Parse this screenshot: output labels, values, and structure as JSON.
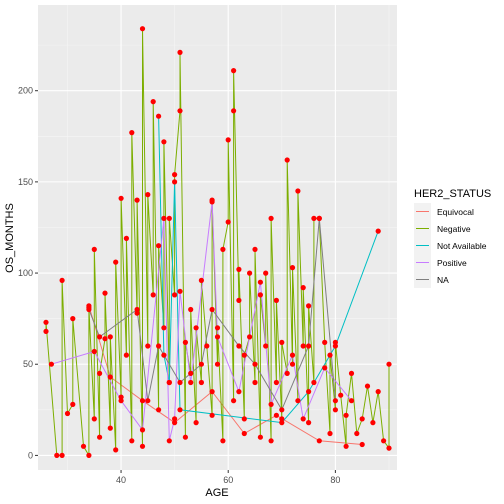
{
  "chart_data": {
    "type": "line",
    "title": "",
    "xlabel": "AGE",
    "ylabel": "OS_MONTHS",
    "xlim": [
      24.5,
      91.5
    ],
    "ylim": [
      -8,
      247
    ],
    "x_ticks": [
      40,
      60,
      80
    ],
    "y_ticks": [
      0,
      50,
      100,
      150,
      200
    ],
    "grid": true,
    "point_color": "#ff0000",
    "legend": {
      "title": "HER2_STATUS",
      "position": "right",
      "entries": [
        {
          "name": "Equivocal",
          "color": "#f8766d"
        },
        {
          "name": "Negative",
          "color": "#7cae00"
        },
        {
          "name": "Not Available",
          "color": "#00bfc4"
        },
        {
          "name": "Positive",
          "color": "#c77cff"
        },
        {
          "name": "NA",
          "color": "#7f7f7f"
        }
      ]
    },
    "series": [
      {
        "name": "Equivocal",
        "color": "#f8766d",
        "points": [
          [
            34,
            82
          ],
          [
            38,
            43
          ],
          [
            44,
            30
          ],
          [
            50,
            18
          ],
          [
            57,
            35
          ],
          [
            63,
            12
          ],
          [
            69,
            22
          ],
          [
            77,
            8
          ],
          [
            85,
            6
          ]
        ]
      },
      {
        "name": "Negative",
        "color": "#7cae00",
        "points": [
          [
            26,
            73
          ],
          [
            26,
            68
          ],
          [
            28,
            0
          ],
          [
            29,
            0
          ],
          [
            29,
            96
          ],
          [
            30,
            23
          ],
          [
            31,
            75
          ],
          [
            31,
            28
          ],
          [
            33,
            5
          ],
          [
            34,
            81
          ],
          [
            34,
            0
          ],
          [
            35,
            113
          ],
          [
            35,
            20
          ],
          [
            36,
            10
          ],
          [
            36,
            45
          ],
          [
            37,
            64
          ],
          [
            37,
            89
          ],
          [
            38,
            15
          ],
          [
            38,
            65
          ],
          [
            39,
            106
          ],
          [
            39,
            3
          ],
          [
            40,
            141
          ],
          [
            40,
            32
          ],
          [
            41,
            119
          ],
          [
            41,
            55
          ],
          [
            42,
            177
          ],
          [
            42,
            8
          ],
          [
            43,
            78
          ],
          [
            43,
            140
          ],
          [
            44,
            234
          ],
          [
            44,
            5
          ],
          [
            45,
            143
          ],
          [
            45,
            60
          ],
          [
            46,
            194
          ],
          [
            46,
            88
          ],
          [
            47,
            115
          ],
          [
            47,
            25
          ],
          [
            48,
            70
          ],
          [
            48,
            172
          ],
          [
            49,
            130
          ],
          [
            49,
            40
          ],
          [
            50,
            154
          ],
          [
            50,
            88
          ],
          [
            51,
            221
          ],
          [
            51,
            189
          ],
          [
            52,
            62
          ],
          [
            52,
            10
          ],
          [
            53,
            45
          ],
          [
            53,
            80
          ],
          [
            54,
            70
          ],
          [
            54,
            18
          ],
          [
            55,
            96
          ],
          [
            55,
            40
          ],
          [
            56,
            60
          ],
          [
            57,
            140
          ],
          [
            57,
            22
          ],
          [
            58,
            70
          ],
          [
            58,
            50
          ],
          [
            59,
            113
          ],
          [
            59,
            8
          ],
          [
            60,
            173
          ],
          [
            60,
            128
          ],
          [
            61,
            211
          ],
          [
            61,
            189
          ],
          [
            61,
            30
          ],
          [
            62,
            85
          ],
          [
            62,
            102
          ],
          [
            63,
            55
          ],
          [
            63,
            20
          ],
          [
            64,
            65
          ],
          [
            64,
            100
          ],
          [
            65,
            113
          ],
          [
            65,
            40
          ],
          [
            66,
            88
          ],
          [
            66,
            10
          ],
          [
            67,
            100
          ],
          [
            67,
            60
          ],
          [
            68,
            130
          ],
          [
            68,
            8
          ],
          [
            69,
            85
          ],
          [
            69,
            40
          ],
          [
            70,
            62
          ],
          [
            70,
            20
          ],
          [
            71,
            162
          ],
          [
            71,
            45
          ],
          [
            72,
            50
          ],
          [
            72,
            103
          ],
          [
            73,
            145
          ],
          [
            73,
            30
          ],
          [
            74,
            92
          ],
          [
            74,
            60
          ],
          [
            75,
            82
          ],
          [
            75,
            18
          ],
          [
            76,
            130
          ],
          [
            76,
            40
          ],
          [
            77,
            130
          ],
          [
            78,
            62
          ],
          [
            79,
            55
          ],
          [
            79,
            12
          ],
          [
            80,
            62
          ],
          [
            80,
            25
          ],
          [
            81,
            33
          ],
          [
            82,
            22
          ],
          [
            82,
            5
          ],
          [
            83,
            45
          ],
          [
            84,
            12
          ],
          [
            85,
            20
          ],
          [
            86,
            38
          ],
          [
            87,
            18
          ],
          [
            88,
            35
          ],
          [
            89,
            8
          ],
          [
            90,
            50
          ],
          [
            90,
            4
          ]
        ]
      },
      {
        "name": "Not Available",
        "color": "#00bfc4",
        "points": [
          [
            47,
            186
          ],
          [
            48,
            55
          ],
          [
            49,
            40
          ],
          [
            50,
            150
          ],
          [
            51,
            25
          ],
          [
            70,
            18
          ],
          [
            75,
            35
          ],
          [
            80,
            60
          ],
          [
            88,
            123
          ]
        ]
      },
      {
        "name": "Positive",
        "color": "#c77cff",
        "points": [
          [
            27,
            50
          ],
          [
            35,
            57
          ],
          [
            40,
            30
          ],
          [
            44,
            14
          ],
          [
            48,
            130
          ],
          [
            49,
            8
          ],
          [
            50,
            20
          ],
          [
            51,
            90
          ],
          [
            53,
            40
          ],
          [
            57,
            139
          ],
          [
            58,
            65
          ],
          [
            62,
            35
          ],
          [
            66,
            95
          ],
          [
            68,
            28
          ],
          [
            72,
            55
          ],
          [
            74,
            20
          ],
          [
            78,
            48
          ],
          [
            83,
            30
          ]
        ]
      },
      {
        "name": "NA",
        "color": "#7f7f7f",
        "points": [
          [
            34,
            80
          ],
          [
            36,
            65
          ],
          [
            43,
            80
          ],
          [
            45,
            30
          ],
          [
            47,
            60
          ],
          [
            51,
            40
          ],
          [
            55,
            50
          ],
          [
            57,
            80
          ],
          [
            62,
            60
          ],
          [
            65,
            50
          ],
          [
            70,
            25
          ],
          [
            75,
            60
          ],
          [
            77,
            130
          ],
          [
            80,
            30
          ]
        ]
      }
    ]
  }
}
